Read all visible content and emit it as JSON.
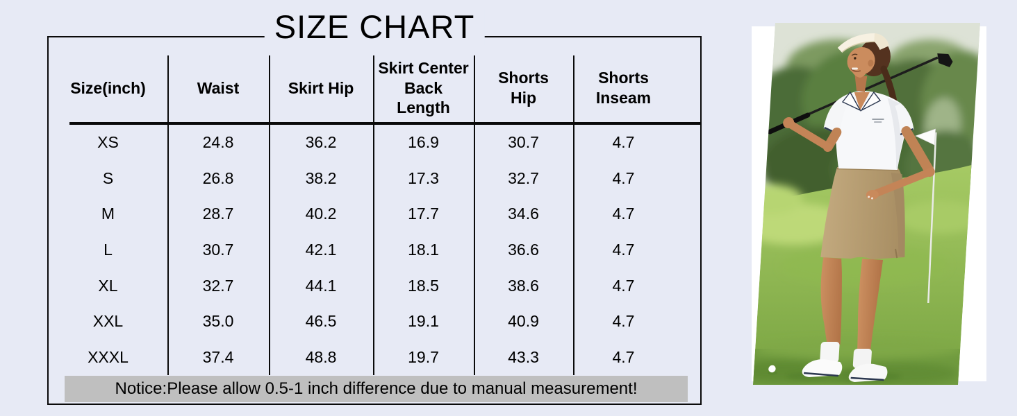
{
  "page": {
    "background_color": "#e7eaf5"
  },
  "size_chart": {
    "title": "SIZE CHART",
    "columns": [
      "Size(inch)",
      "Waist",
      "Skirt Hip",
      "Skirt Center\nBack\nLength",
      "Shorts\nHip",
      "Shorts\nInseam"
    ],
    "rows": [
      {
        "size": "XS",
        "values": [
          "24.8",
          "36.2",
          "16.9",
          "30.7",
          "4.7"
        ]
      },
      {
        "size": "S",
        "values": [
          "26.8",
          "38.2",
          "17.3",
          "32.7",
          "4.7"
        ]
      },
      {
        "size": "M",
        "values": [
          "28.7",
          "40.2",
          "17.7",
          "34.6",
          "4.7"
        ]
      },
      {
        "size": "L",
        "values": [
          "30.7",
          "42.1",
          "18.1",
          "36.6",
          "4.7"
        ]
      },
      {
        "size": "XL",
        "values": [
          "32.7",
          "44.1",
          "18.5",
          "38.6",
          "4.7"
        ]
      },
      {
        "size": "XXL",
        "values": [
          "35.0",
          "46.5",
          "19.1",
          "40.9",
          "4.7"
        ]
      },
      {
        "size": "XXXL",
        "values": [
          "37.4",
          "48.8",
          "19.7",
          "43.3",
          "4.7"
        ]
      }
    ],
    "notice": "Notice:Please allow 0.5-1 inch difference due to manual measurement!",
    "colors": {
      "border": "#0a0a0a",
      "notice_background": "#bfbfbf",
      "text": "#000000"
    }
  },
  "photo": {
    "alt": "Smiling woman on a golf course wearing a white visor, white short-sleeve polo shirt and khaki golf skort, holding a golf club across her shoulders; blurred trees behind, a white flag on a pole and a golf ball on the grass",
    "elements": [
      "visor",
      "polo-shirt",
      "golf-club",
      "khaki-skort",
      "golf-flag",
      "golf-ball",
      "trees",
      "grass"
    ],
    "colors": {
      "panel": "#ffffff",
      "trees": "#4c6c38",
      "grass": "#9ec45f",
      "skort": "#b49a70",
      "skin": "#c08355",
      "club": "#1c1c1c"
    }
  }
}
